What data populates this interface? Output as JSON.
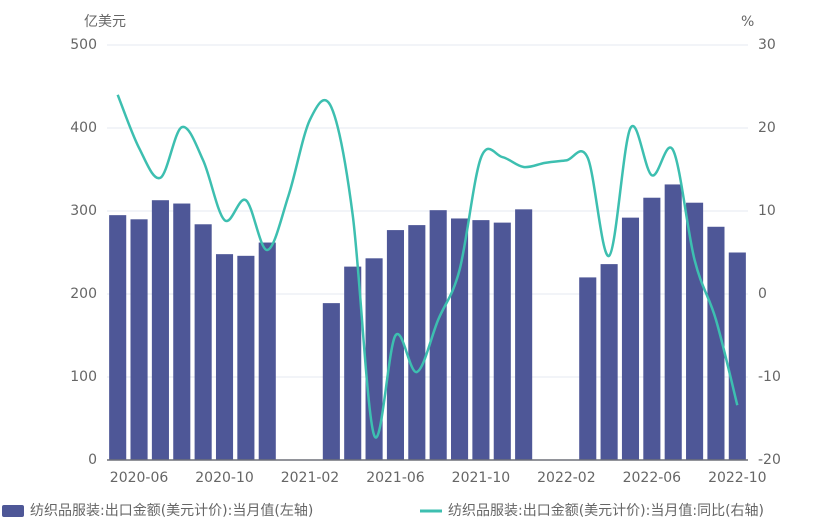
{
  "chart_data": {
    "type": "bar-line",
    "y_label": "亿美元",
    "y2_label": "%",
    "categories": [
      null,
      "2020-06",
      null,
      null,
      null,
      "2020-10",
      null,
      null,
      null,
      "2021-02",
      null,
      null,
      null,
      "2021-06",
      null,
      null,
      null,
      "2021-10",
      null,
      null,
      null,
      "2022-02",
      null,
      null,
      null,
      "2022-06",
      null,
      null,
      null,
      "2022-10"
    ],
    "series": [
      {
        "name": "纺织品服装:出口金额(美元计价):当月值(左轴)",
        "type": "bar",
        "color": "#4e5797",
        "values": [
          295,
          290,
          313,
          309,
          284,
          248,
          246,
          262,
          null,
          null,
          189,
          233,
          243,
          277,
          283,
          301,
          291,
          289,
          286,
          302,
          null,
          null,
          220,
          236,
          292,
          316,
          332,
          310,
          281,
          250
        ]
      },
      {
        "name": "纺织品服装:出口金额(美元计价):当月值:同比(右轴)",
        "type": "line",
        "axis": "y2",
        "color": "#3dbfb0",
        "values": [
          24,
          17.6,
          14,
          20.1,
          16.1,
          8.9,
          11.3,
          5.3,
          11.9,
          21,
          22.5,
          9.5,
          -17,
          -5,
          -9.4,
          -3.1,
          2.9,
          16.4,
          16.5,
          15.3,
          15.8,
          16.1,
          16.4,
          4.6,
          20,
          14.3,
          17.3,
          4.1,
          -3.1,
          -13.4
        ]
      }
    ],
    "ylim": [
      0,
      500
    ],
    "yticks": [
      0,
      100,
      200,
      300,
      400,
      500
    ],
    "y2lim": [
      -20,
      30
    ],
    "y2ticks": [
      -20,
      -10,
      0,
      10,
      20,
      30
    ],
    "grid": true,
    "legend": "bottom"
  }
}
